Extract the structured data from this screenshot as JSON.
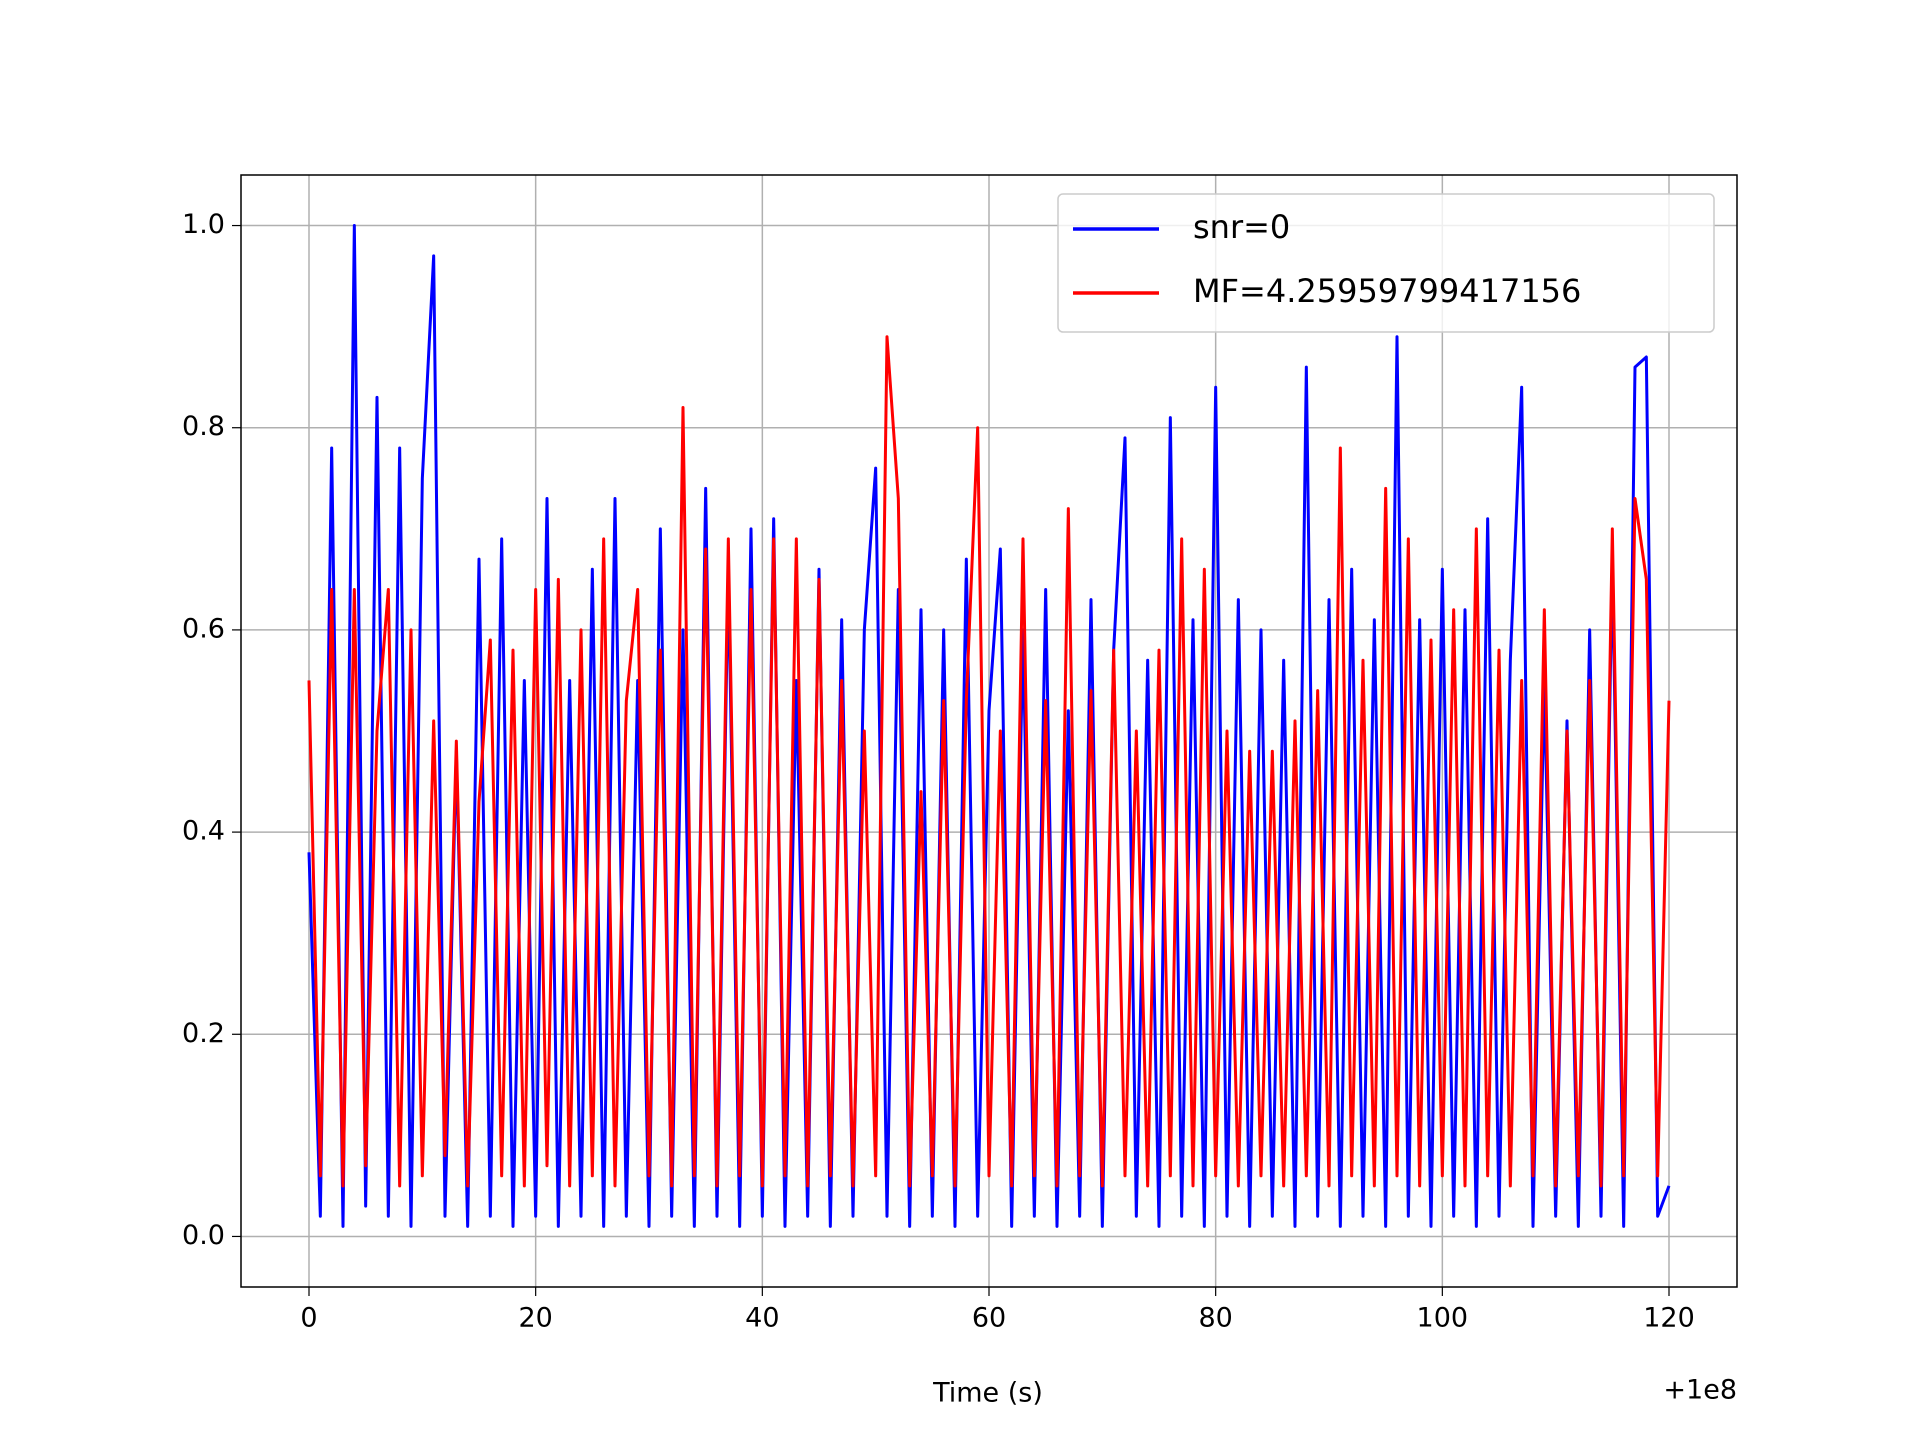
{
  "chart_data": {
    "type": "line",
    "xlabel": "Time (s)",
    "x_offset_label": "+1e8",
    "x": [
      0,
      1,
      2,
      3,
      4,
      5,
      6,
      7,
      8,
      9,
      10,
      11,
      12,
      13,
      14,
      15,
      16,
      17,
      18,
      19,
      20,
      21,
      22,
      23,
      24,
      25,
      26,
      27,
      28,
      29,
      30,
      31,
      32,
      33,
      34,
      35,
      36,
      37,
      38,
      39,
      40,
      41,
      42,
      43,
      44,
      45,
      46,
      47,
      48,
      49,
      50,
      51,
      52,
      53,
      54,
      55,
      56,
      57,
      58,
      59,
      60,
      61,
      62,
      63,
      64,
      65,
      66,
      67,
      68,
      69,
      70,
      71,
      72,
      73,
      74,
      75,
      76,
      77,
      78,
      79,
      80,
      81,
      82,
      83,
      84,
      85,
      86,
      87,
      88,
      89,
      90,
      91,
      92,
      93,
      94,
      95,
      96,
      97,
      98,
      99,
      100,
      101,
      102,
      103,
      104,
      105,
      106,
      107,
      108,
      109,
      110,
      111,
      112,
      113,
      114,
      115,
      116,
      117,
      118,
      119,
      120
    ],
    "series": [
      {
        "name": "snr=0",
        "color": "#0000ff",
        "values": [
          0.38,
          0.02,
          0.78,
          0.01,
          1.0,
          0.03,
          0.83,
          0.02,
          0.78,
          0.01,
          0.75,
          0.97,
          0.02,
          0.48,
          0.01,
          0.67,
          0.02,
          0.69,
          0.01,
          0.55,
          0.02,
          0.73,
          0.01,
          0.55,
          0.02,
          0.66,
          0.01,
          0.73,
          0.02,
          0.55,
          0.01,
          0.7,
          0.02,
          0.6,
          0.01,
          0.74,
          0.02,
          0.66,
          0.01,
          0.7,
          0.02,
          0.71,
          0.01,
          0.55,
          0.02,
          0.66,
          0.01,
          0.61,
          0.02,
          0.6,
          0.76,
          0.02,
          0.64,
          0.01,
          0.62,
          0.02,
          0.6,
          0.01,
          0.67,
          0.02,
          0.52,
          0.68,
          0.01,
          0.6,
          0.02,
          0.64,
          0.01,
          0.52,
          0.02,
          0.63,
          0.01,
          0.58,
          0.79,
          0.02,
          0.57,
          0.01,
          0.81,
          0.02,
          0.61,
          0.01,
          0.84,
          0.02,
          0.63,
          0.01,
          0.6,
          0.02,
          0.57,
          0.01,
          0.86,
          0.02,
          0.63,
          0.01,
          0.66,
          0.02,
          0.61,
          0.01,
          0.89,
          0.02,
          0.61,
          0.01,
          0.66,
          0.02,
          0.62,
          0.01,
          0.71,
          0.02,
          0.57,
          0.84,
          0.01,
          0.55,
          0.02,
          0.51,
          0.01,
          0.6,
          0.02,
          0.67,
          0.01,
          0.86,
          0.87,
          0.02,
          0.05
        ]
      },
      {
        "name": "MF=4.25959799417156",
        "color": "#ff0000",
        "values": [
          0.55,
          0.06,
          0.64,
          0.05,
          0.64,
          0.07,
          0.5,
          0.64,
          0.05,
          0.6,
          0.06,
          0.51,
          0.08,
          0.49,
          0.05,
          0.43,
          0.59,
          0.06,
          0.58,
          0.05,
          0.64,
          0.07,
          0.65,
          0.05,
          0.6,
          0.06,
          0.69,
          0.05,
          0.53,
          0.64,
          0.06,
          0.58,
          0.05,
          0.82,
          0.06,
          0.68,
          0.05,
          0.69,
          0.06,
          0.64,
          0.05,
          0.69,
          0.06,
          0.69,
          0.05,
          0.65,
          0.06,
          0.55,
          0.05,
          0.5,
          0.06,
          0.89,
          0.73,
          0.05,
          0.44,
          0.06,
          0.53,
          0.05,
          0.53,
          0.8,
          0.06,
          0.5,
          0.05,
          0.69,
          0.06,
          0.53,
          0.05,
          0.72,
          0.06,
          0.54,
          0.05,
          0.58,
          0.06,
          0.5,
          0.05,
          0.58,
          0.06,
          0.69,
          0.05,
          0.66,
          0.06,
          0.5,
          0.05,
          0.48,
          0.06,
          0.48,
          0.05,
          0.51,
          0.06,
          0.54,
          0.05,
          0.78,
          0.06,
          0.57,
          0.05,
          0.74,
          0.06,
          0.69,
          0.05,
          0.59,
          0.06,
          0.62,
          0.05,
          0.7,
          0.06,
          0.58,
          0.05,
          0.55,
          0.06,
          0.62,
          0.05,
          0.5,
          0.06,
          0.55,
          0.05,
          0.7,
          0.06,
          0.73,
          0.65,
          0.06,
          0.53
        ]
      }
    ],
    "xlim": [
      -6,
      126
    ],
    "xticks": [
      0,
      20,
      40,
      60,
      80,
      100,
      120
    ],
    "ylim": [
      -0.05,
      1.05
    ],
    "yticks": [
      {
        "value": 0,
        "label": "0.0"
      },
      0.2,
      0.4,
      0.6,
      0.8,
      {
        "value": 1,
        "label": "1.0"
      }
    ],
    "grid": true,
    "legend": "upper right"
  }
}
